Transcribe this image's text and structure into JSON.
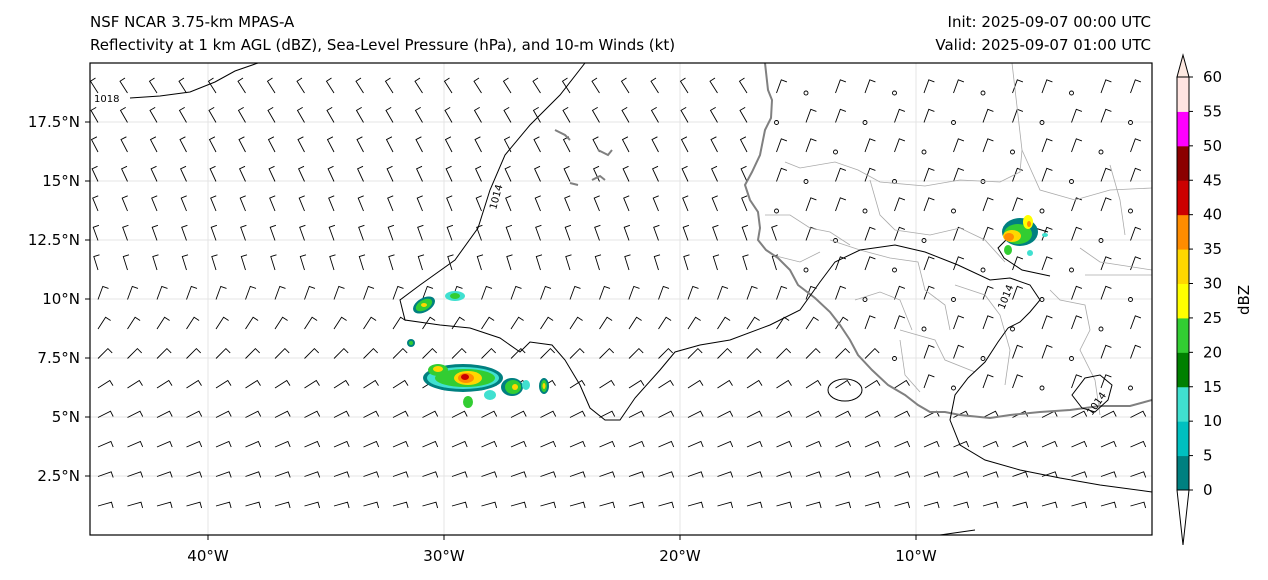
{
  "title": {
    "left_line1": "NSF NCAR 3.75-km MPAS-A",
    "left_line2": "Reflectivity at 1 km AGL (dBZ), Sea-Level Pressure (hPa), and 10-m Winds (kt)",
    "right_line1": "Init: 2025-09-07 00:00 UTC",
    "right_line2": "Valid: 2025-09-07 01:00 UTC"
  },
  "map": {
    "lon_range": [
      -45,
      0
    ],
    "lat_range": [
      0,
      20
    ],
    "x_tick_labels": [
      "40°W",
      "30°W",
      "20°W",
      "10°W"
    ],
    "y_tick_labels": [
      "17.5°N",
      "15°N",
      "12.5°N",
      "10°N",
      "7.5°N",
      "5°N",
      "2.5°N"
    ],
    "contour_labels": [
      "1018",
      "1014",
      "1014",
      "1014"
    ],
    "coastline_color": "#808080",
    "border_color": "#aaaaaa",
    "contour_color": "#000000"
  },
  "colorbar": {
    "label": "dBZ",
    "tick_labels": [
      "0",
      "5",
      "10",
      "15",
      "20",
      "25",
      "30",
      "35",
      "40",
      "45",
      "50",
      "55",
      "60"
    ],
    "colors": [
      "#008080",
      "#00c0c0",
      "#40e0d0",
      "#008000",
      "#32cd32",
      "#ffff00",
      "#ffd700",
      "#ff8c00",
      "#cc0000",
      "#8b0000",
      "#ff00ff",
      "#ffe4e1"
    ],
    "under_color": "#ffffff",
    "over_color": "#fde8e0"
  }
}
